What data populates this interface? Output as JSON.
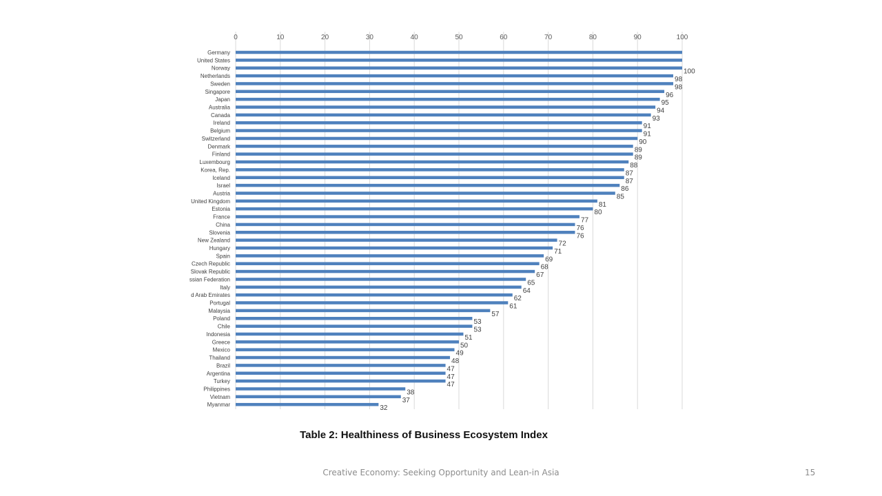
{
  "chart_data": {
    "type": "bar",
    "orientation": "horizontal",
    "title": "Table 2: Healthiness of Business Ecosystem Index",
    "xlim": [
      0,
      100
    ],
    "x_ticks": [
      0,
      10,
      20,
      30,
      40,
      50,
      60,
      70,
      80,
      90,
      100
    ],
    "grid": true,
    "bar_color": "#4f81bd",
    "categories": [
      "Germany",
      "United States",
      "Norway",
      "Netherlands",
      "Sweden",
      "Singapore",
      "Japan",
      "Australia",
      "Canada",
      "Ireland",
      "Belgium",
      "Switzerland",
      "Denmark",
      "Finland",
      "Luxembourg",
      "Korea, Rep.",
      "Iceland",
      "Israel",
      "Austria",
      "United Kingdom",
      "Estonia",
      "France",
      "China",
      "Slovenia",
      "New Zealand",
      "Hungary",
      "Spain",
      "Czech Republic",
      "Slovak Republic",
      "ssian Federation",
      "Italy",
      "d Arab Emirates",
      "Portugal",
      "Malaysia",
      "Poland",
      "Chile",
      "Indonesia",
      "Greece",
      "Mexico",
      "Thailand",
      "Brazil",
      "Argentina",
      "Turkey",
      "Philippines",
      "Vietnam",
      "Myanmar"
    ],
    "values": [
      100,
      100,
      100,
      98,
      98,
      96,
      95,
      94,
      93,
      91,
      91,
      90,
      89,
      89,
      88,
      87,
      87,
      86,
      85,
      81,
      80,
      77,
      76,
      76,
      72,
      71,
      69,
      68,
      67,
      65,
      64,
      62,
      61,
      57,
      53,
      53,
      51,
      50,
      49,
      48,
      47,
      47,
      47,
      38,
      37,
      32
    ],
    "data_labels": [
      "",
      "",
      "100",
      "98",
      "98",
      "96",
      "95",
      "94",
      "93",
      "91",
      "91",
      "90",
      "89",
      "89",
      "88",
      "87",
      "87",
      "86",
      "85",
      "81",
      "80",
      "77",
      "76",
      "76",
      "72",
      "71",
      "69",
      "68",
      "67",
      "65",
      "64",
      "62",
      "61",
      "57",
      "53",
      "53",
      "51",
      "50",
      "49",
      "48",
      "47",
      "47",
      "47",
      "38",
      "37",
      "32"
    ]
  },
  "footer": {
    "text": "Creative Economy: Seeking Opportunity and Lean-in Asia",
    "page_number": "15"
  }
}
